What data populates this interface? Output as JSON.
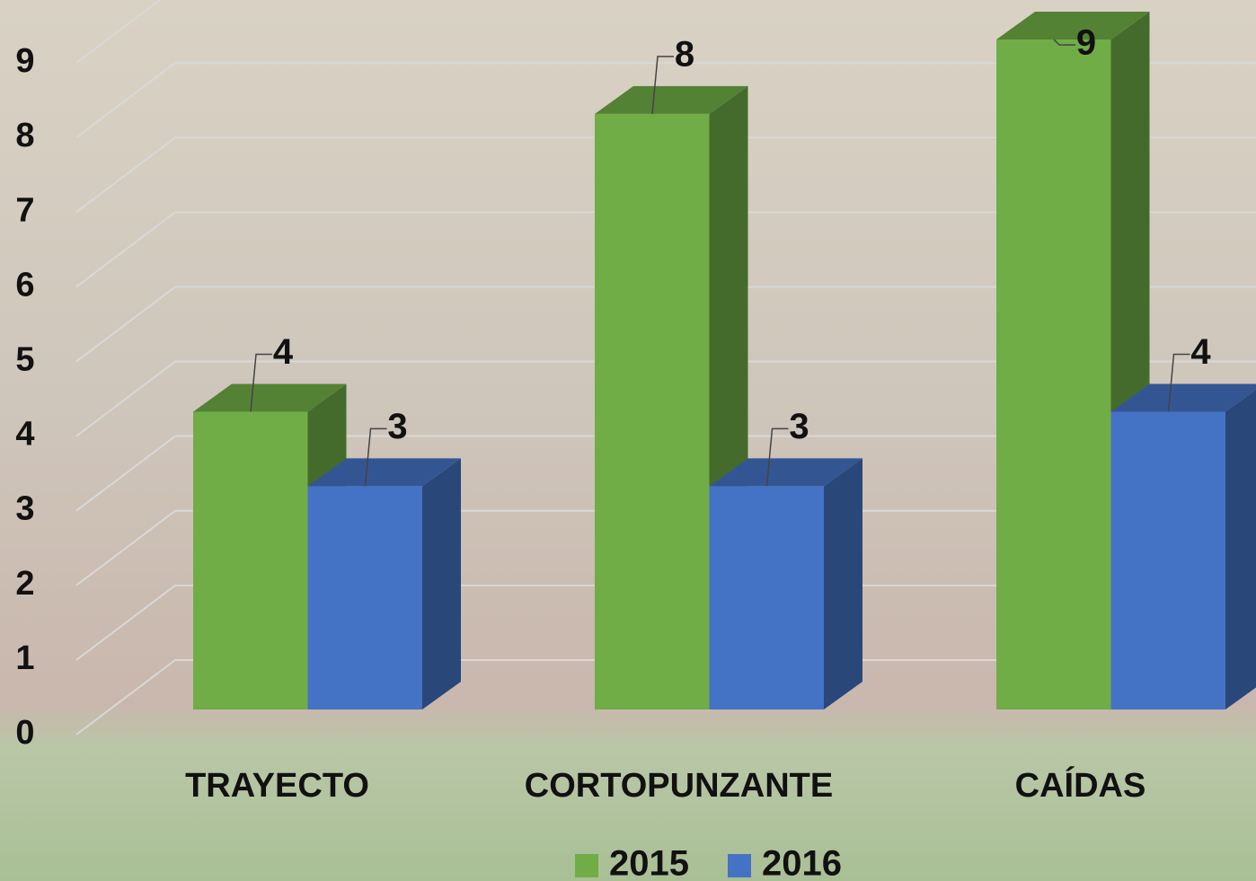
{
  "chart_data": {
    "type": "bar3d",
    "categories": [
      "TRAYECTO",
      "CORTOPUNZANTE",
      "CAÍDAS"
    ],
    "series": [
      {
        "name": "2015",
        "color": "#70ad47",
        "values": [
          4,
          8,
          9
        ]
      },
      {
        "name": "2016",
        "color": "#4472c4",
        "values": [
          3,
          3,
          4
        ]
      }
    ],
    "ylim": [
      0,
      9
    ],
    "yticks": [
      0,
      1,
      2,
      3,
      4,
      5,
      6,
      7,
      8,
      9
    ],
    "grid": true,
    "legend": "bottom"
  }
}
